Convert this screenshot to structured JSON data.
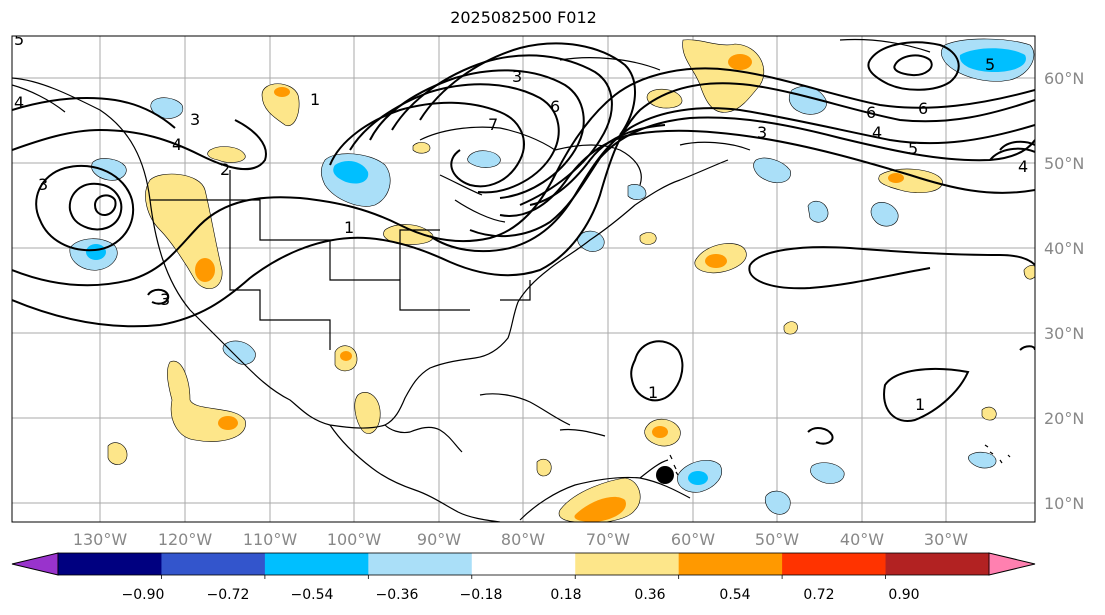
{
  "title": "2025082500 F012",
  "lon_labels": [
    "130°W",
    "120°W",
    "110°W",
    "100°W",
    "90°W",
    "80°W",
    "70°W",
    "60°W",
    "50°W",
    "40°W",
    "30°W"
  ],
  "lat_labels": [
    "60°N",
    "50°N",
    "40°N",
    "30°N",
    "20°N",
    "10°N"
  ],
  "contour_labels": [
    "5",
    "4",
    "3",
    "2",
    "1",
    "6",
    "7",
    "3",
    "6",
    "4",
    "5",
    "6",
    "3",
    "4",
    "5",
    "4",
    "1",
    "3",
    "1",
    "1",
    "3"
  ],
  "colorbar": {
    "tick_labels": [
      "−0.90",
      "−0.72",
      "−0.54",
      "−0.36",
      "−0.18",
      "0.18",
      "0.36",
      "0.54",
      "0.72",
      "0.90"
    ],
    "colors": [
      "#9933cc",
      "#000080",
      "#3355cc",
      "#00bfff",
      "#aadff8",
      "#ffffff",
      "#fde68a",
      "#ff9900",
      "#ff3300",
      "#b22222",
      "#ff80b0"
    ]
  },
  "styles": {
    "positive_light": "#fde68a",
    "positive_mid": "#ff9900",
    "negative_light": "#aadff8",
    "negative_mid": "#00bfff",
    "grid_color": "#aaaaaa",
    "coast_color": "#000000"
  }
}
